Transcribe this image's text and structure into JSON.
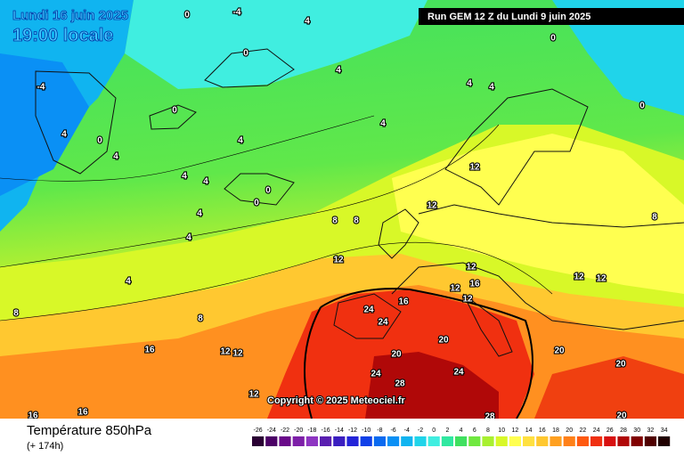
{
  "header": {
    "date": "Lundi 16 juin 2025",
    "time": "19:00 locale",
    "run": "Run GEM 12 Z du Lundi 9 juin 2025"
  },
  "copyright": "Copyright © 2025 Meteociel.fr",
  "footer": {
    "title": "Température 850hPa",
    "subtitle": "(+ 174h)"
  },
  "colorbar": {
    "labels": [
      -26,
      -24,
      -22,
      -20,
      -18,
      -16,
      -14,
      -12,
      -10,
      -8,
      -6,
      -4,
      -2,
      0,
      2,
      4,
      6,
      8,
      10,
      12,
      14,
      16,
      18,
      20,
      22,
      24,
      26,
      28,
      30,
      32,
      34
    ],
    "colors": [
      "#2a0033",
      "#4b0066",
      "#6a0a8a",
      "#7d1fa8",
      "#8e35c2",
      "#5a1fb0",
      "#3a1ec0",
      "#2424d8",
      "#1040e8",
      "#0a6af0",
      "#0a90f5",
      "#10b4f0",
      "#20d4ea",
      "#40eee0",
      "#30e8a0",
      "#40e060",
      "#70e840",
      "#a8f030",
      "#d8f828",
      "#ffff50",
      "#ffe040",
      "#ffc830",
      "#ffa020",
      "#ff8018",
      "#ff5a10",
      "#f03010",
      "#d81010",
      "#b00808",
      "#800000",
      "#500000",
      "#200000"
    ]
  },
  "contour_labels": [
    "0",
    "-4",
    "4",
    "0",
    "4",
    "-4",
    "4",
    "0",
    "4",
    "0",
    "4",
    "4",
    "4",
    "0",
    "0",
    "4",
    "4",
    "4",
    "8",
    "8",
    "12",
    "12",
    "12",
    "12",
    "16",
    "12",
    "12",
    "16",
    "24",
    "24",
    "20",
    "20",
    "24",
    "24",
    "28",
    "16",
    "12",
    "12",
    "12",
    "16",
    "16",
    "20",
    "20",
    "28",
    "20",
    "8",
    "8",
    "4",
    "4",
    "0",
    "0",
    "8",
    "12",
    "12",
    "4"
  ]
}
